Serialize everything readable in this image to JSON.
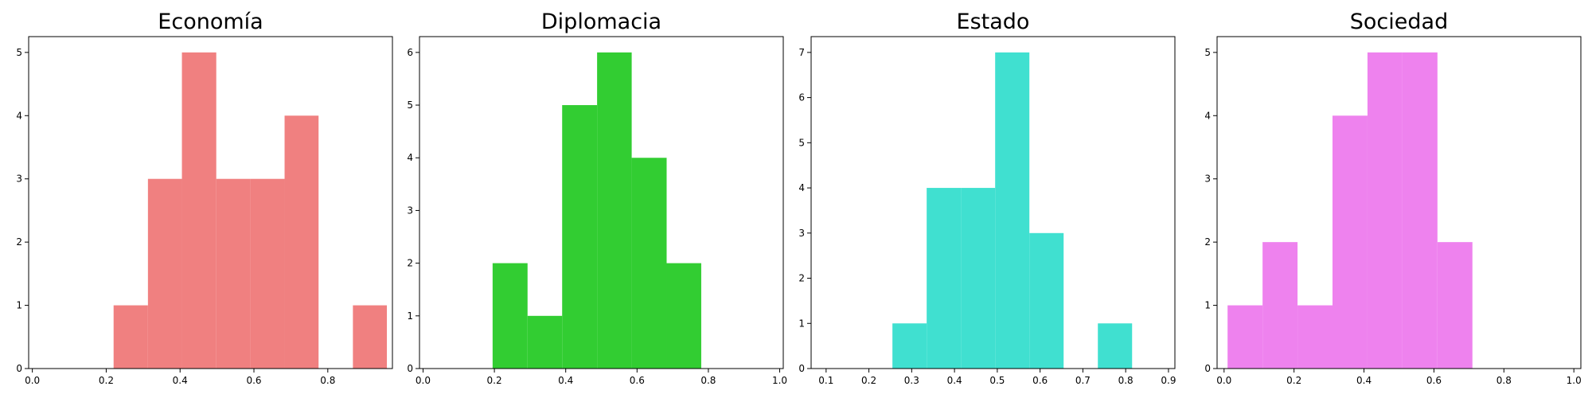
{
  "chart_data": [
    {
      "type": "bar",
      "title": "Economía",
      "color": "#f08080",
      "xlim": [
        -0.01,
        0.975
      ],
      "ylim": [
        0,
        5.25
      ],
      "xticks": [
        "0.0",
        "0.2",
        "0.4",
        "0.6",
        "0.8"
      ],
      "yticks": [
        "0",
        "1",
        "2",
        "3",
        "4",
        "5"
      ],
      "bins": [
        {
          "x0": 0.22,
          "x1": 0.313,
          "count": 1
        },
        {
          "x0": 0.313,
          "x1": 0.405,
          "count": 3
        },
        {
          "x0": 0.405,
          "x1": 0.498,
          "count": 5
        },
        {
          "x0": 0.498,
          "x1": 0.59,
          "count": 3
        },
        {
          "x0": 0.59,
          "x1": 0.683,
          "count": 3
        },
        {
          "x0": 0.683,
          "x1": 0.775,
          "count": 4
        },
        {
          "x0": 0.775,
          "x1": 0.868,
          "count": 0
        },
        {
          "x0": 0.868,
          "x1": 0.96,
          "count": 1
        }
      ]
    },
    {
      "type": "bar",
      "title": "Diplomacia",
      "color": "#32cd32",
      "xlim": [
        -0.01,
        1.01
      ],
      "ylim": [
        0,
        6.3
      ],
      "xticks": [
        "0.0",
        "0.2",
        "0.4",
        "0.6",
        "0.8",
        "1.0"
      ],
      "yticks": [
        "0",
        "1",
        "2",
        "3",
        "4",
        "5",
        "6"
      ],
      "bins": [
        {
          "x0": 0.195,
          "x1": 0.293,
          "count": 2
        },
        {
          "x0": 0.293,
          "x1": 0.39,
          "count": 1
        },
        {
          "x0": 0.39,
          "x1": 0.488,
          "count": 5
        },
        {
          "x0": 0.488,
          "x1": 0.585,
          "count": 6
        },
        {
          "x0": 0.585,
          "x1": 0.683,
          "count": 4
        },
        {
          "x0": 0.683,
          "x1": 0.78,
          "count": 2
        }
      ]
    },
    {
      "type": "bar",
      "title": "Estado",
      "color": "#40e0d0",
      "xlim": [
        0.065,
        0.915
      ],
      "ylim": [
        0,
        7.35
      ],
      "xticks": [
        "0.1",
        "0.2",
        "0.3",
        "0.4",
        "0.5",
        "0.6",
        "0.7",
        "0.8",
        "0.9"
      ],
      "yticks": [
        "0",
        "1",
        "2",
        "3",
        "4",
        "5",
        "6",
        "7"
      ],
      "bins": [
        {
          "x0": 0.255,
          "x1": 0.335,
          "count": 1
        },
        {
          "x0": 0.335,
          "x1": 0.415,
          "count": 4
        },
        {
          "x0": 0.415,
          "x1": 0.495,
          "count": 4
        },
        {
          "x0": 0.495,
          "x1": 0.575,
          "count": 7
        },
        {
          "x0": 0.575,
          "x1": 0.655,
          "count": 3
        },
        {
          "x0": 0.655,
          "x1": 0.735,
          "count": 0
        },
        {
          "x0": 0.735,
          "x1": 0.815,
          "count": 1
        }
      ]
    },
    {
      "type": "bar",
      "title": "Sociedad",
      "color": "#ee82ee",
      "xlim": [
        -0.02,
        1.02
      ],
      "ylim": [
        0,
        5.25
      ],
      "xticks": [
        "0.0",
        "0.2",
        "0.4",
        "0.6",
        "0.8",
        "1.0"
      ],
      "yticks": [
        "0",
        "1",
        "2",
        "3",
        "4",
        "5"
      ],
      "bins": [
        {
          "x0": 0.01,
          "x1": 0.11,
          "count": 1
        },
        {
          "x0": 0.11,
          "x1": 0.21,
          "count": 2
        },
        {
          "x0": 0.21,
          "x1": 0.31,
          "count": 1
        },
        {
          "x0": 0.31,
          "x1": 0.41,
          "count": 4
        },
        {
          "x0": 0.41,
          "x1": 0.51,
          "count": 5
        },
        {
          "x0": 0.51,
          "x1": 0.61,
          "count": 5
        },
        {
          "x0": 0.61,
          "x1": 0.71,
          "count": 2
        }
      ]
    }
  ]
}
